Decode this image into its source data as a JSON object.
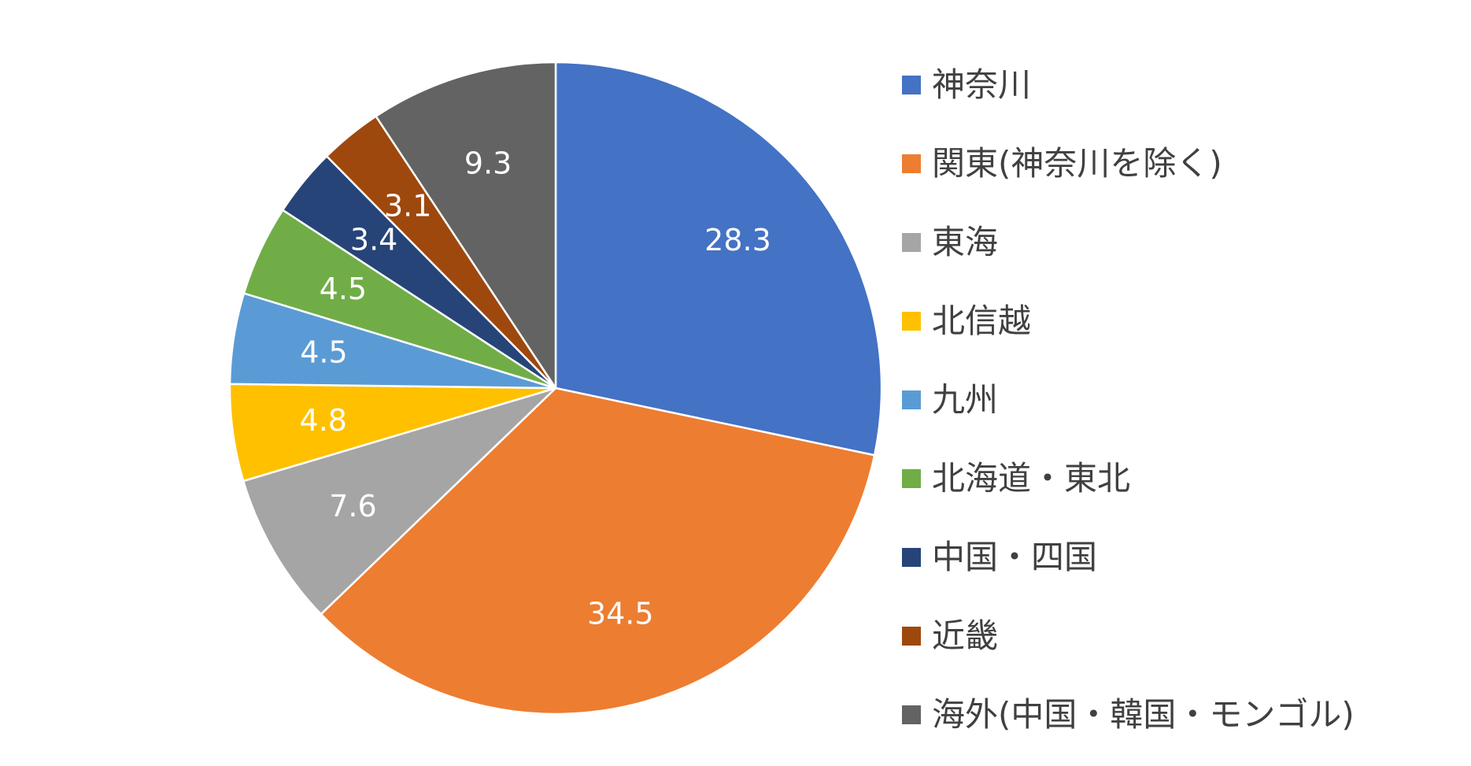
{
  "chart_data": {
    "type": "pie",
    "title": "",
    "start_angle_deg": 0,
    "direction": "clockwise",
    "label_color": "#ffffff",
    "slice_border_color": "#ffffff",
    "slices": [
      {
        "label": "神奈川",
        "value": 28.3,
        "value_label": "28.3",
        "color": "#4472C4"
      },
      {
        "label": "関東(神奈川を除く)",
        "value": 34.5,
        "value_label": "34.5",
        "color": "#ED7D31"
      },
      {
        "label": "東海",
        "value": 7.6,
        "value_label": "7.6",
        "color": "#A5A5A5"
      },
      {
        "label": "北信越",
        "value": 4.8,
        "value_label": "4.8",
        "color": "#FFC000"
      },
      {
        "label": "九州",
        "value": 4.5,
        "value_label": "4.5",
        "color": "#5B9BD5"
      },
      {
        "label": "北海道・東北",
        "value": 4.5,
        "value_label": "4.5",
        "color": "#70AD47"
      },
      {
        "label": "中国・四国",
        "value": 3.4,
        "value_label": "3.4",
        "color": "#264478"
      },
      {
        "label": "近畿",
        "value": 3.1,
        "value_label": "3.1",
        "color": "#9E480E"
      },
      {
        "label": "海外(中国・韓国・モンゴル)",
        "value": 9.3,
        "value_label": "9.3",
        "color": "#636363"
      }
    ],
    "legend": {
      "position": "right"
    }
  }
}
